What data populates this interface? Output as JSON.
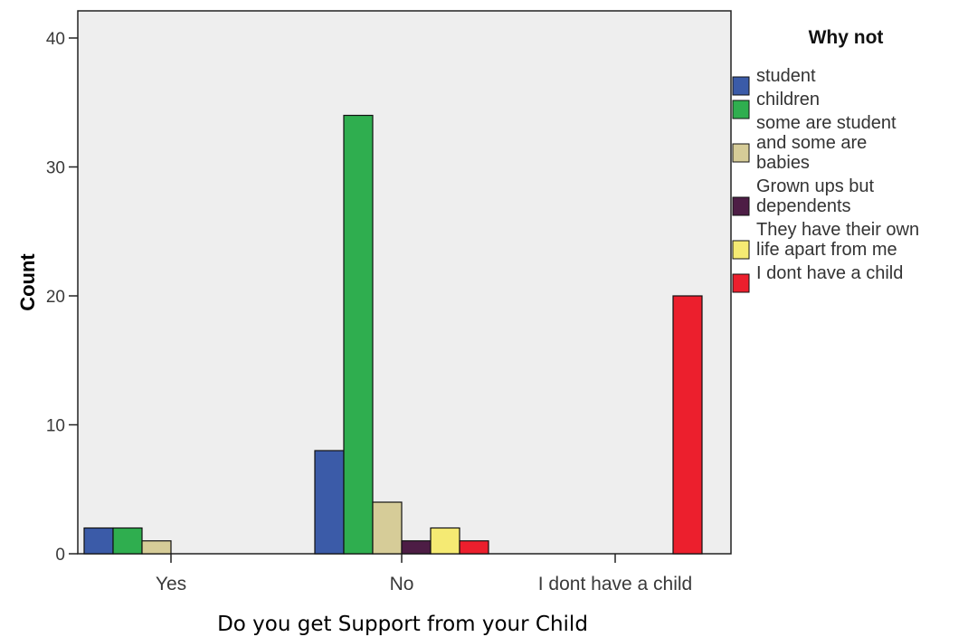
{
  "chart_data": {
    "type": "bar",
    "xlabel": "Do you get Support from your Child",
    "ylabel": "Count",
    "ylim": [
      0,
      42
    ],
    "yticks": [
      0,
      10,
      20,
      30,
      40
    ],
    "grid": false,
    "legend_position": "right",
    "legend_title": "Why not",
    "categories": [
      "Yes",
      "No",
      "I dont have a child"
    ],
    "series": [
      {
        "name": "student",
        "color": "#3b5ba8",
        "values": [
          2,
          8,
          0
        ]
      },
      {
        "name": "children",
        "color": "#2fae4f",
        "values": [
          2,
          34,
          0
        ]
      },
      {
        "name": "some are student and some are babies",
        "legend_lines": [
          "some are student",
          "and some are",
          "babies"
        ],
        "color": "#d6cc98",
        "values": [
          1,
          4,
          0
        ]
      },
      {
        "name": "Grown ups but dependents",
        "legend_lines": [
          "Grown ups but",
          "dependents"
        ],
        "color": "#4d1d45",
        "values": [
          0,
          1,
          0
        ]
      },
      {
        "name": "They have their own life apart from me",
        "legend_lines": [
          "They have their own",
          "life apart from me"
        ],
        "color": "#f5ea73",
        "values": [
          0,
          2,
          0
        ]
      },
      {
        "name": "I dont have a child",
        "color": "#ec1f2d",
        "values": [
          0,
          1,
          20
        ]
      }
    ]
  }
}
